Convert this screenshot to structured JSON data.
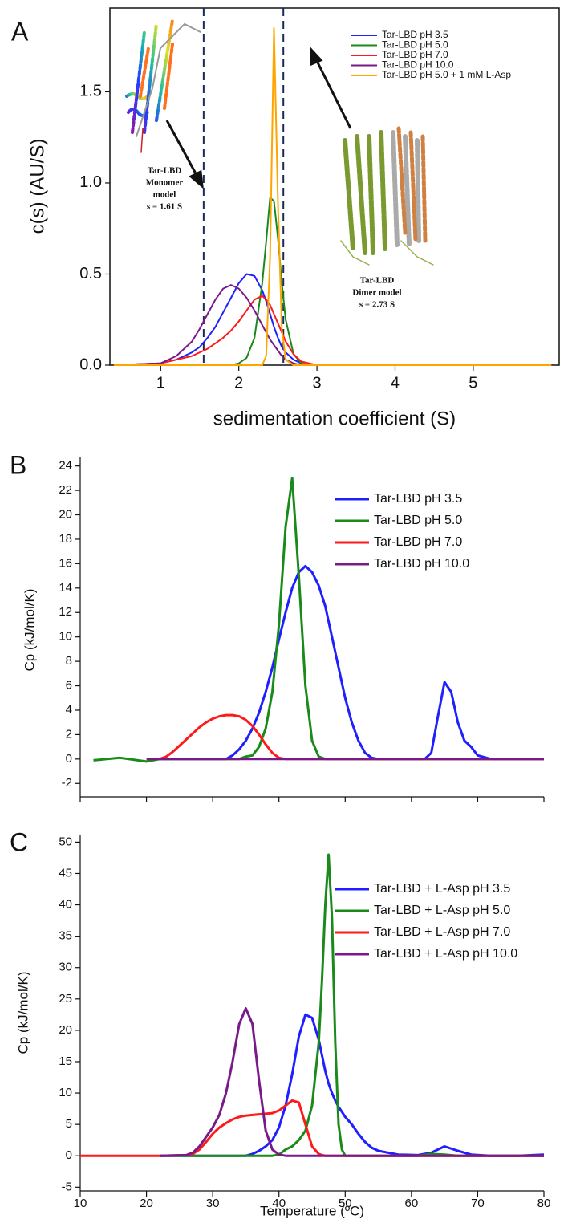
{
  "chart_data": [
    {
      "type": "line",
      "panel_label": "A",
      "x_label": "sedimentation coefficient (S)",
      "y_label": "c(s) (AU/S)",
      "xlim": [
        0.35,
        6.1
      ],
      "ylim": [
        0,
        1.96
      ],
      "xticks": [
        1,
        2,
        3,
        4,
        5
      ],
      "yticks": [
        {
          "value": 0,
          "label": "0.0"
        },
        0.5,
        {
          "value": 1,
          "label": "1.0"
        },
        1.5
      ],
      "frame": true,
      "legend": "upper right",
      "reference_lines": [
        1.55,
        2.57
      ],
      "annotations": [
        [
          "Tar-LBD",
          "Monomer",
          "model",
          "s = 1.61 S"
        ],
        [
          "Tar-LBD",
          "Dimer model",
          "s = 2.73 S"
        ]
      ],
      "x": [
        0.4,
        1.0,
        1.2,
        1.4,
        1.5,
        1.6,
        1.7,
        1.8,
        1.9,
        2.0,
        2.1,
        2.2,
        2.3,
        2.35,
        2.4,
        2.45,
        2.5,
        2.55,
        2.6,
        2.7,
        2.8,
        2.9,
        3.0,
        3.5,
        6.0
      ],
      "series": [
        {
          "name": "Tar-LBD pH 3.5",
          "color": "#1f1fff",
          "values": [
            0,
            0.01,
            0.03,
            0.07,
            0.1,
            0.15,
            0.21,
            0.29,
            0.37,
            0.45,
            0.5,
            0.49,
            0.41,
            0.35,
            0.28,
            0.21,
            0.15,
            0.1,
            0.07,
            0.03,
            0.01,
            0,
            0,
            0,
            0
          ]
        },
        {
          "name": "Tar-LBD pH 5.0",
          "color": "#1a8a1a",
          "values": [
            0,
            0,
            0,
            0,
            0,
            0,
            0,
            0,
            0,
            0.01,
            0.04,
            0.15,
            0.45,
            0.68,
            0.92,
            0.9,
            0.7,
            0.45,
            0.25,
            0.06,
            0.01,
            0,
            0,
            0,
            0
          ]
        },
        {
          "name": "Tar-LBD pH 7.0",
          "color": "#ff1a1a",
          "values": [
            0,
            0.01,
            0.03,
            0.05,
            0.07,
            0.09,
            0.12,
            0.15,
            0.19,
            0.24,
            0.3,
            0.36,
            0.38,
            0.36,
            0.33,
            0.28,
            0.23,
            0.18,
            0.13,
            0.06,
            0.02,
            0.01,
            0,
            0,
            0
          ]
        },
        {
          "name": "Tar-LBD pH 10.0",
          "color": "#7a1a8a",
          "values": [
            0,
            0.01,
            0.05,
            0.13,
            0.2,
            0.28,
            0.36,
            0.42,
            0.44,
            0.42,
            0.37,
            0.3,
            0.22,
            0.18,
            0.14,
            0.11,
            0.08,
            0.05,
            0.03,
            0.01,
            0,
            0,
            0,
            0,
            0
          ]
        },
        {
          "name": "Tar-LBD pH 5.0 + 1 mM L-Asp",
          "color": "#ffa500",
          "values": [
            0,
            0,
            0,
            0,
            0,
            0,
            0,
            0,
            0,
            0,
            0,
            0,
            0,
            0.05,
            0.6,
            1.85,
            0.9,
            0.2,
            0.03,
            0,
            0,
            0,
            0,
            0,
            0
          ]
        }
      ]
    },
    {
      "type": "line",
      "panel_label": "B",
      "y_label": "Cp (kJ/mol/K)",
      "xlim": [
        10,
        80
      ],
      "ylim": [
        -3.1,
        24.7
      ],
      "xticks": [
        10,
        20,
        30,
        40,
        50,
        60,
        70,
        80
      ],
      "xtick_labels": false,
      "yticks": [
        -2,
        0,
        2,
        4,
        6,
        8,
        10,
        12,
        14,
        16,
        18,
        20,
        22,
        24
      ],
      "frame": false,
      "legend": "upper right",
      "x": [
        12,
        16,
        20,
        22,
        23,
        24,
        25,
        26,
        27,
        28,
        29,
        30,
        31,
        32,
        33,
        34,
        35,
        36,
        37,
        38,
        39,
        40,
        41,
        42,
        43,
        44,
        45,
        46,
        47,
        48,
        49,
        50,
        51,
        52,
        53,
        54,
        55,
        56,
        57,
        58,
        59,
        60,
        61,
        62,
        63,
        64,
        65,
        66,
        67,
        68,
        69,
        70,
        72,
        76,
        80
      ],
      "series": [
        {
          "name": "Tar-LBD pH 3.5",
          "color": "#1f1fff",
          "values": [
            null,
            null,
            null,
            0,
            0,
            0,
            0,
            0,
            0,
            0,
            0,
            0,
            0,
            0,
            0.3,
            0.8,
            1.5,
            2.5,
            3.8,
            5.5,
            7.5,
            9.8,
            12,
            14,
            15.3,
            15.8,
            15.3,
            14.2,
            12.5,
            10,
            7.5,
            5,
            3,
            1.5,
            0.5,
            0.1,
            0,
            0,
            0,
            0,
            0,
            0,
            0,
            0,
            0.5,
            3.5,
            6.3,
            5.5,
            3,
            1.5,
            1,
            0.3,
            0,
            0,
            0
          ]
        },
        {
          "name": "Tar-LBD pH 5.0",
          "color": "#1a8a1a",
          "values": [
            -0.1,
            0.1,
            -0.2,
            0,
            0,
            0,
            0,
            0,
            0,
            0,
            0,
            0,
            0,
            0,
            0,
            0,
            0.2,
            0.3,
            1,
            2.5,
            5.5,
            11,
            19,
            23,
            15,
            6,
            1.5,
            0.2,
            0,
            0,
            0,
            0,
            0,
            0,
            0,
            0,
            0,
            0,
            0,
            0,
            0,
            0,
            0,
            0,
            0,
            0,
            0,
            0,
            0,
            0,
            0,
            0,
            0,
            0,
            0
          ]
        },
        {
          "name": "Tar-LBD pH 7.0",
          "color": "#ff1a1a",
          "values": [
            null,
            null,
            null,
            0,
            0.2,
            0.6,
            1.1,
            1.6,
            2.1,
            2.6,
            3,
            3.3,
            3.5,
            3.6,
            3.6,
            3.5,
            3.2,
            2.7,
            2,
            1.2,
            0.5,
            0.1,
            0,
            0,
            0,
            0,
            0,
            0,
            0,
            0,
            0,
            0,
            0,
            0,
            0,
            0,
            0,
            0,
            0,
            0,
            0,
            0,
            0,
            0,
            0,
            0,
            0,
            0,
            0,
            0,
            0,
            0,
            0,
            0,
            0
          ]
        },
        {
          "name": "Tar-LBD pH 10.0",
          "color": "#7a1a8a",
          "values": [
            null,
            null,
            0,
            0,
            0,
            0,
            0,
            0,
            0,
            0,
            0,
            0,
            0,
            0,
            0,
            0,
            0,
            0,
            0,
            0,
            0,
            0,
            0,
            0,
            0,
            0,
            0,
            0,
            0,
            0,
            0,
            0,
            0,
            0,
            0,
            0,
            0,
            0,
            0,
            0,
            0,
            0,
            0,
            0,
            0,
            0,
            0,
            0,
            0,
            0,
            0,
            0,
            0,
            0,
            0
          ]
        }
      ]
    },
    {
      "type": "line",
      "panel_label": "C",
      "x_label": "Temperature (ºC)",
      "y_label": "Cp (kJ/mol/K)",
      "xlim": [
        10,
        80
      ],
      "ylim": [
        -5.6,
        51.2
      ],
      "xticks": [
        10,
        20,
        30,
        40,
        50,
        60,
        70,
        80
      ],
      "yticks": [
        -5,
        0,
        5,
        10,
        15,
        20,
        25,
        30,
        35,
        40,
        45,
        50
      ],
      "frame": false,
      "legend": "upper right",
      "x": [
        10,
        14,
        18,
        22,
        26,
        27,
        28,
        29,
        30,
        31,
        32,
        33,
        34,
        35,
        36,
        37,
        38,
        39,
        40,
        41,
        42,
        43,
        44,
        45,
        46,
        46.5,
        47,
        47.5,
        48,
        48.5,
        49,
        49.5,
        50,
        51,
        52,
        53,
        54,
        55,
        58,
        61,
        63,
        65,
        67,
        69,
        72,
        76,
        80
      ],
      "series": [
        {
          "name": "Tar-LBD + L-Asp pH 3.5",
          "color": "#1f1fff",
          "values": [
            null,
            null,
            null,
            0,
            0,
            0,
            0,
            0,
            0,
            0,
            0,
            0,
            0,
            0,
            0.3,
            0.8,
            1.5,
            2.5,
            4.5,
            8,
            13,
            19,
            22.5,
            22,
            18.5,
            16,
            13.5,
            11.5,
            10,
            8.8,
            7.8,
            7,
            6.2,
            5,
            3.5,
            2.2,
            1.3,
            0.8,
            0.2,
            0.1,
            0.5,
            1.5,
            0.8,
            0.2,
            0,
            0,
            0.2
          ]
        },
        {
          "name": "Tar-LBD + L-Asp pH 5.0",
          "color": "#1a8a1a",
          "values": [
            null,
            null,
            null,
            0,
            0,
            0,
            0,
            0,
            0,
            0,
            0,
            0,
            0,
            0,
            0,
            0,
            0,
            0,
            0.2,
            1,
            1.5,
            2.5,
            4,
            8,
            18,
            28,
            40,
            48,
            38,
            18,
            5,
            1,
            0,
            0,
            0,
            0,
            0,
            0,
            0,
            0,
            0.3,
            0.2,
            0,
            0,
            0,
            0,
            0
          ]
        },
        {
          "name": "Tar-LBD + L-Asp pH 7.0",
          "color": "#ff1a1a",
          "values": [
            0,
            0,
            0,
            0,
            0.1,
            0.3,
            1,
            2.2,
            3.5,
            4.5,
            5.2,
            5.8,
            6.2,
            6.4,
            6.5,
            6.6,
            6.7,
            6.8,
            7.2,
            8,
            8.8,
            8.5,
            5,
            1.5,
            0.3,
            0.1,
            0,
            0,
            0,
            0,
            0,
            0,
            0,
            0,
            0,
            0,
            0,
            0,
            0,
            0,
            0,
            0,
            0,
            0,
            0,
            0,
            0
          ]
        },
        {
          "name": "Tar-LBD + L-Asp pH 10.0",
          "color": "#7a1a8a",
          "values": [
            null,
            null,
            null,
            0,
            0.1,
            0.5,
            1.5,
            3,
            4.5,
            6.5,
            10,
            15,
            21,
            23.5,
            21,
            12,
            4,
            1,
            0.2,
            0,
            0,
            0,
            0,
            0,
            0,
            0,
            0,
            0,
            0,
            0,
            0,
            0,
            0,
            0,
            0,
            0,
            0,
            0,
            0,
            0,
            0,
            0,
            0,
            0,
            0,
            0,
            0
          ]
        }
      ]
    }
  ]
}
